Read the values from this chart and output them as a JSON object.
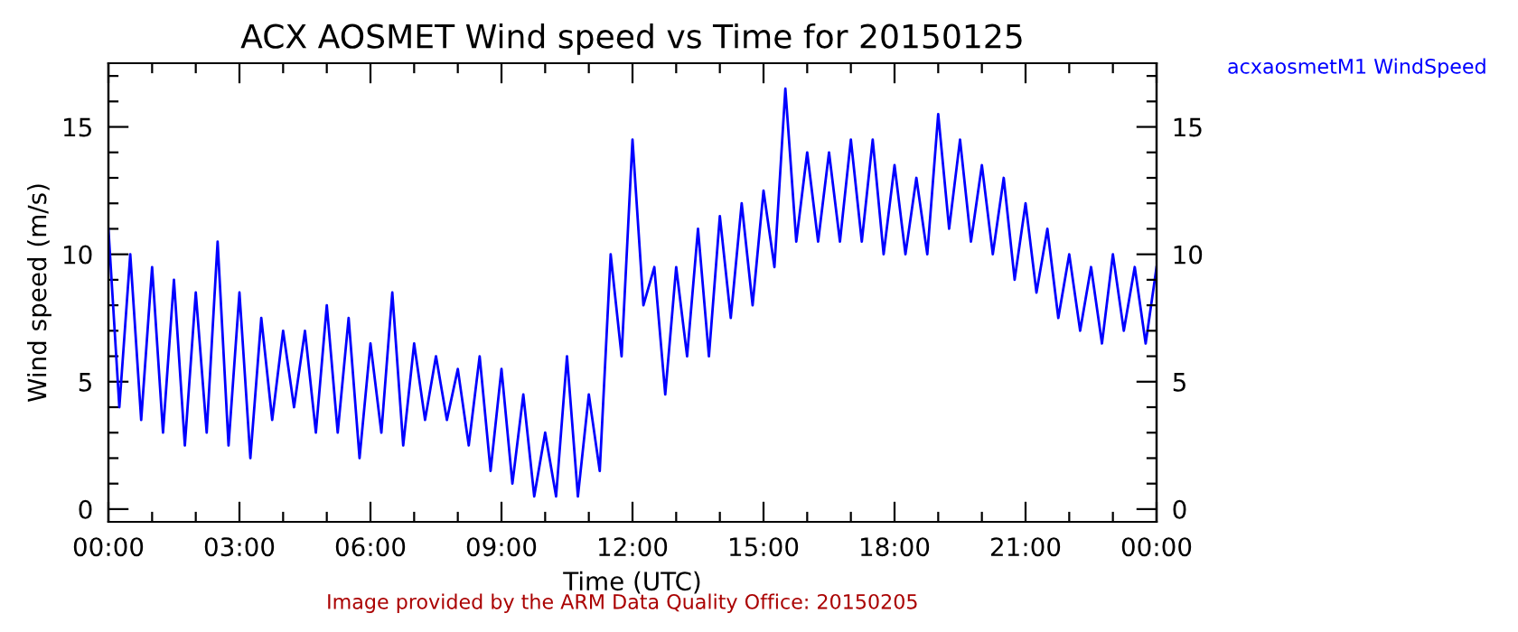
{
  "chart_data": {
    "type": "line",
    "title": "ACX AOSMET Wind speed vs Time for 20150125",
    "xlabel": "Time (UTC)",
    "ylabel": "Wind speed (m/s)",
    "annotations": [
      "Image provided by the ARM Data Quality Office: 20150205"
    ],
    "legend": "top right",
    "grid": false,
    "xlim": [
      0,
      24
    ],
    "xticks": [
      {
        "value": 0,
        "label": "00:00"
      },
      {
        "value": 1,
        "label": null
      },
      {
        "value": 2,
        "label": null
      },
      {
        "value": 3,
        "label": "03:00"
      },
      {
        "value": 4,
        "label": null
      },
      {
        "value": 5,
        "label": null
      },
      {
        "value": 6,
        "label": "06:00"
      },
      {
        "value": 7,
        "label": null
      },
      {
        "value": 8,
        "label": null
      },
      {
        "value": 9,
        "label": "09:00"
      },
      {
        "value": 10,
        "label": null
      },
      {
        "value": 11,
        "label": null
      },
      {
        "value": 12,
        "label": "12:00"
      },
      {
        "value": 13,
        "label": null
      },
      {
        "value": 14,
        "label": null
      },
      {
        "value": 15,
        "label": "15:00"
      },
      {
        "value": 16,
        "label": null
      },
      {
        "value": 17,
        "label": null
      },
      {
        "value": 18,
        "label": "18:00"
      },
      {
        "value": 19,
        "label": null
      },
      {
        "value": 20,
        "label": null
      },
      {
        "value": 21,
        "label": "21:00"
      },
      {
        "value": 22,
        "label": null
      },
      {
        "value": 23,
        "label": null
      },
      {
        "value": 24,
        "label": "00:00"
      }
    ],
    "ylim": [
      -0.5,
      17.5
    ],
    "yticks": [
      0,
      {
        "value": 1,
        "label": null
      },
      {
        "value": 2,
        "label": null
      },
      {
        "value": 3,
        "label": null
      },
      {
        "value": 4,
        "label": null
      },
      5,
      {
        "value": 6,
        "label": null
      },
      {
        "value": 7,
        "label": null
      },
      {
        "value": 8,
        "label": null
      },
      {
        "value": 9,
        "label": null
      },
      10,
      {
        "value": 11,
        "label": null
      },
      {
        "value": 12,
        "label": null
      },
      {
        "value": 13,
        "label": null
      },
      {
        "value": 14,
        "label": null
      },
      15,
      {
        "value": 16,
        "label": null
      },
      {
        "value": 17,
        "label": null
      }
    ],
    "y2lim": [
      -0.5,
      17.5
    ],
    "y2ticks": [
      0,
      {
        "value": 1,
        "label": null
      },
      {
        "value": 2,
        "label": null
      },
      {
        "value": 3,
        "label": null
      },
      {
        "value": 4,
        "label": null
      },
      5,
      {
        "value": 6,
        "label": null
      },
      {
        "value": 7,
        "label": null
      },
      {
        "value": 8,
        "label": null
      },
      {
        "value": 9,
        "label": null
      },
      10,
      {
        "value": 11,
        "label": null
      },
      {
        "value": 12,
        "label": null
      },
      {
        "value": 13,
        "label": null
      },
      {
        "value": 14,
        "label": null
      },
      15,
      {
        "value": 16,
        "label": null
      },
      {
        "value": 17,
        "label": null
      }
    ],
    "series": [
      {
        "name": "acxaosmetM1 WindSpeed",
        "color": "#0000ff",
        "x": [
          0,
          0.25,
          0.5,
          0.75,
          1,
          1.25,
          1.5,
          1.75,
          2,
          2.25,
          2.5,
          2.75,
          3,
          3.25,
          3.5,
          3.75,
          4,
          4.25,
          4.5,
          4.75,
          5,
          5.25,
          5.5,
          5.75,
          6,
          6.25,
          6.5,
          6.75,
          7,
          7.25,
          7.5,
          7.75,
          8,
          8.25,
          8.5,
          8.75,
          9,
          9.25,
          9.5,
          9.75,
          10,
          10.25,
          10.5,
          10.75,
          11,
          11.25,
          11.5,
          11.75,
          12,
          12.25,
          12.5,
          12.75,
          13,
          13.25,
          13.5,
          13.75,
          14,
          14.25,
          14.5,
          14.75,
          15,
          15.25,
          15.5,
          15.75,
          16,
          16.25,
          16.5,
          16.75,
          17,
          17.25,
          17.5,
          17.75,
          18,
          18.25,
          18.5,
          18.75,
          19,
          19.25,
          19.5,
          19.75,
          20,
          20.25,
          20.5,
          20.75,
          21,
          21.25,
          21.5,
          21.75,
          22,
          22.25,
          22.5,
          22.75,
          23,
          23.25,
          23.5,
          23.75,
          24
        ],
        "values": [
          11,
          4,
          10,
          3.5,
          9.5,
          3,
          9,
          2.5,
          8.5,
          3,
          10.5,
          2.5,
          8.5,
          2,
          7.5,
          3.5,
          7,
          4,
          7,
          3,
          8,
          3,
          7.5,
          2,
          6.5,
          3,
          8.5,
          2.5,
          6.5,
          3.5,
          6,
          3.5,
          5.5,
          2.5,
          6,
          1.5,
          5.5,
          1,
          4.5,
          0.5,
          3,
          0.5,
          6,
          0.5,
          4.5,
          1.5,
          10,
          6,
          14.5,
          8,
          9.5,
          4.5,
          9.5,
          6,
          11,
          6,
          11.5,
          7.5,
          12,
          8,
          12.5,
          9.5,
          16.5,
          10.5,
          14,
          10.5,
          14,
          10.5,
          14.5,
          10.5,
          14.5,
          10,
          13.5,
          10,
          13,
          10,
          15.5,
          11,
          14.5,
          10.5,
          13.5,
          10,
          13,
          9,
          12,
          8.5,
          11,
          7.5,
          10,
          7,
          9.5,
          6.5,
          10,
          7,
          9.5,
          6.5,
          9.5
        ]
      }
    ]
  }
}
